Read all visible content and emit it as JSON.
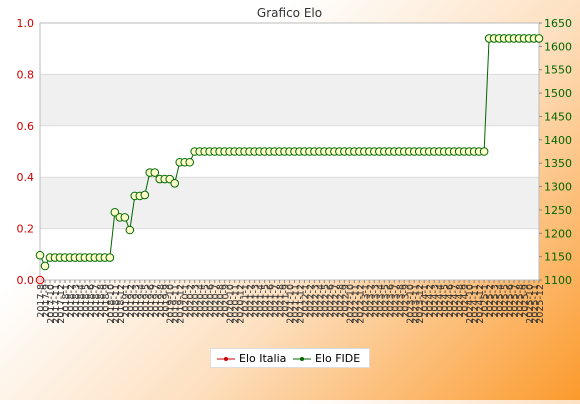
{
  "chart_data": {
    "type": "line",
    "title": "Grafico Elo",
    "left_axis": {
      "ylim": [
        0.0,
        1.0
      ],
      "ticks": [
        "0.0",
        "0.2",
        "0.4",
        "0.6",
        "0.8",
        "1.0"
      ],
      "tick_color": "#cc0000"
    },
    "right_axis": {
      "ylim": [
        1100,
        1650
      ],
      "ticks": [
        "1100",
        "1150",
        "1200",
        "1250",
        "1300",
        "1350",
        "1400",
        "1450",
        "1500",
        "1550",
        "1600",
        "1650"
      ],
      "tick_color": "#006600"
    },
    "grid": true,
    "legend_position": "bottom",
    "x": [
      "2017-8",
      "2017-9",
      "2017-10",
      "2017-11",
      "2017-12",
      "2018-1",
      "2018-2",
      "2018-3",
      "2018-4",
      "2018-5",
      "2018-6",
      "2018-7",
      "2018-8",
      "2018-9",
      "2018-10",
      "2018-11",
      "2018-12",
      "2019-1",
      "2019-2",
      "2019-3",
      "2019-4",
      "2019-5",
      "2019-6",
      "2019-7",
      "2019-8",
      "2019-9",
      "2019-10",
      "2019-11",
      "2019-12",
      "2020-1",
      "2020-2",
      "2020-3",
      "2020-4",
      "2020-5",
      "2020-6",
      "2020-7",
      "2020-8",
      "2020-9",
      "2020-10",
      "2020-11",
      "2020-12",
      "2021-1",
      "2021-2",
      "2021-3",
      "2021-4",
      "2021-5",
      "2021-6",
      "2021-7",
      "2021-8",
      "2021-9",
      "2021-10",
      "2021-11",
      "2021-12",
      "2022-1",
      "2022-2",
      "2022-3",
      "2022-4",
      "2022-5",
      "2022-6",
      "2022-7",
      "2022-8",
      "2022-9",
      "2022-10",
      "2022-11",
      "2022-12",
      "2023-1",
      "2023-2",
      "2023-3",
      "2023-4",
      "2023-5",
      "2023-6",
      "2023-7",
      "2023-8",
      "2023-9",
      "2023-10",
      "2023-11",
      "2023-12",
      "2024-1",
      "2024-2",
      "2024-3",
      "2024-4",
      "2024-5",
      "2024-6",
      "2024-7",
      "2024-8",
      "2024-9",
      "2024-10",
      "2024-11",
      "2024-12",
      "2025-1",
      "2025-2",
      "2025-3",
      "2025-4",
      "2025-5",
      "2025-6",
      "2025-7",
      "2025-8",
      "2025-9",
      "2025-10",
      "2025-11",
      "2025-12"
    ],
    "series": [
      {
        "name": "Elo Italia",
        "axis": "left",
        "color": "#cc0000",
        "points": [
          {
            "x": "2017-8",
            "y": 0.0
          }
        ]
      },
      {
        "name": "Elo FIDE",
        "axis": "right",
        "color": "#006600",
        "values": [
          1153,
          1130,
          1148,
          1148,
          1148,
          1148,
          1148,
          1148,
          1148,
          1148,
          1148,
          1148,
          1148,
          1148,
          1148,
          1245,
          1234,
          1234,
          1207,
          1280,
          1280,
          1282,
          1330,
          1330,
          1316,
          1316,
          1316,
          1307,
          1352,
          1352,
          1352,
          1375,
          1375,
          1375,
          1375,
          1375,
          1375,
          1375,
          1375,
          1375,
          1375,
          1375,
          1375,
          1375,
          1375,
          1375,
          1375,
          1375,
          1375,
          1375,
          1375,
          1375,
          1375,
          1375,
          1375,
          1375,
          1375,
          1375,
          1375,
          1375,
          1375,
          1375,
          1375,
          1375,
          1375,
          1375,
          1375,
          1375,
          1375,
          1375,
          1375,
          1375,
          1375,
          1375,
          1375,
          1375,
          1375,
          1375,
          1375,
          1375,
          1375,
          1375,
          1375,
          1375,
          1375,
          1375,
          1375,
          1375,
          1375,
          1375,
          1617,
          1617,
          1617,
          1617,
          1617,
          1617,
          1617,
          1617,
          1617,
          1617,
          1617
        ],
        "note_values_are": "monthly FIDE Elo read from right axis"
      }
    ]
  }
}
